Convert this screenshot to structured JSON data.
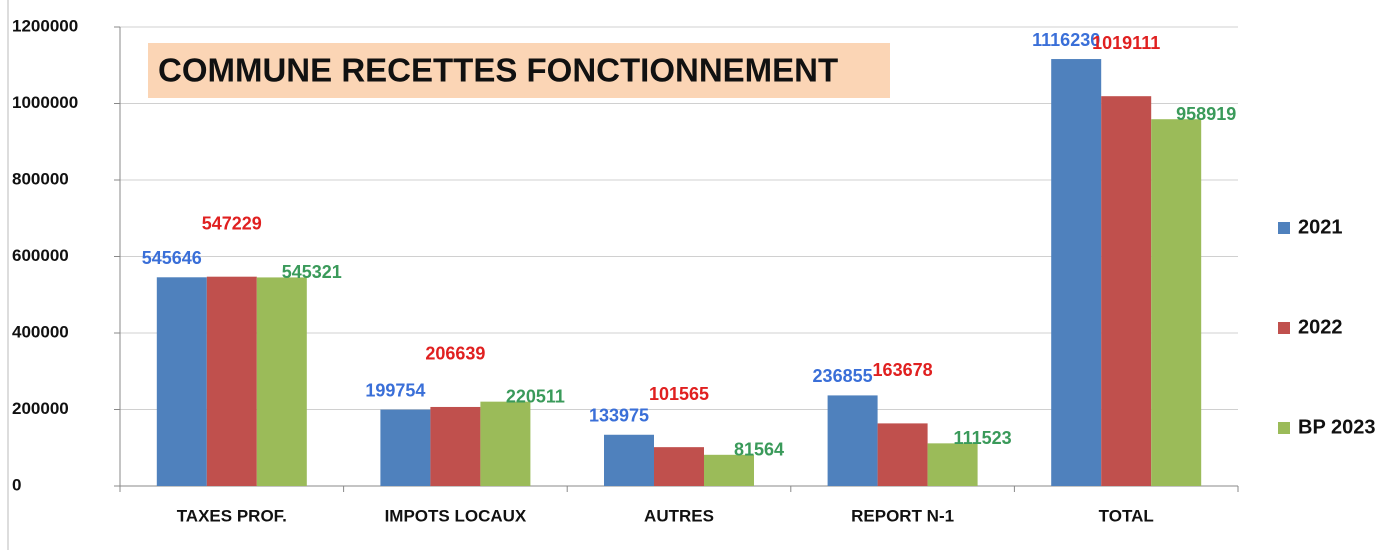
{
  "chart_data": {
    "type": "bar",
    "title": "COMMUNE  RECETTES FONCTIONNEMENT",
    "categories": [
      "TAXES PROF.",
      "IMPOTS LOCAUX",
      "AUTRES",
      "REPORT N-1",
      "TOTAL"
    ],
    "series": [
      {
        "name": "2021",
        "color": "#4f81bd",
        "label_color": "#3a6fd8",
        "values": [
          545646,
          199754,
          133975,
          236855,
          1116230
        ]
      },
      {
        "name": "2022",
        "color": "#c0504d",
        "label_color": "#e02020",
        "values": [
          547229,
          206639,
          101565,
          163678,
          1019111
        ]
      },
      {
        "name": "BP 2023",
        "color": "#9bbb59",
        "label_color": "#3a9a5a",
        "values": [
          545321,
          220511,
          81564,
          111523,
          958919
        ]
      }
    ],
    "ylim": [
      0,
      1200000
    ],
    "yticks": [
      0,
      200000,
      400000,
      600000,
      800000,
      1000000,
      1200000
    ],
    "grid": true,
    "legend": "right"
  }
}
